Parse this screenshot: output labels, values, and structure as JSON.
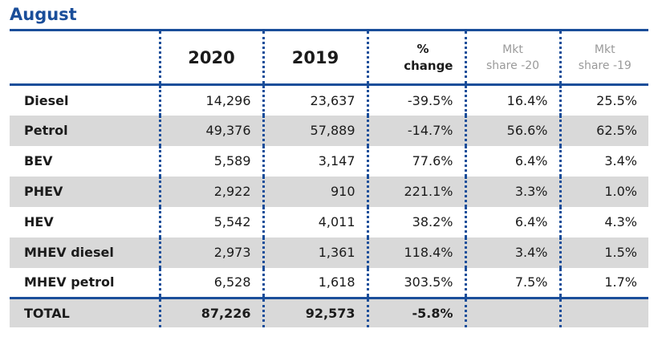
{
  "title": "August",
  "columns": {
    "c2020": "2020",
    "c2019": "2019",
    "change_line1": "%",
    "change_line2": "change",
    "mkt20_line1": "Mkt",
    "mkt20_line2": "share -20",
    "mkt19_line1": "Mkt",
    "mkt19_line2": "share -19"
  },
  "rows": [
    {
      "label": "Diesel",
      "y2020": "14,296",
      "y2019": "23,637",
      "change": "-39.5%",
      "share20": "16.4%",
      "share19": "25.5%"
    },
    {
      "label": "Petrol",
      "y2020": "49,376",
      "y2019": "57,889",
      "change": "-14.7%",
      "share20": "56.6%",
      "share19": "62.5%"
    },
    {
      "label": "BEV",
      "y2020": "5,589",
      "y2019": "3,147",
      "change": "77.6%",
      "share20": "6.4%",
      "share19": "3.4%"
    },
    {
      "label": "PHEV",
      "y2020": "2,922",
      "y2019": "910",
      "change": "221.1%",
      "share20": "3.3%",
      "share19": "1.0%"
    },
    {
      "label": "HEV",
      "y2020": "5,542",
      "y2019": "4,011",
      "change": "38.2%",
      "share20": "6.4%",
      "share19": "4.3%"
    },
    {
      "label": "MHEV diesel",
      "y2020": "2,973",
      "y2019": "1,361",
      "change": "118.4%",
      "share20": "3.4%",
      "share19": "1.5%"
    },
    {
      "label": "MHEV petrol",
      "y2020": "6,528",
      "y2019": "1,618",
      "change": "303.5%",
      "share20": "7.5%",
      "share19": "1.7%"
    }
  ],
  "total": {
    "label": "TOTAL",
    "y2020": "87,226",
    "y2019": "92,573",
    "change": "-5.8%",
    "share20": "",
    "share19": ""
  },
  "colors": {
    "accent": "#1a4e9a",
    "row_shade": "#d9d9d9",
    "muted_header": "#9a9a9a"
  }
}
